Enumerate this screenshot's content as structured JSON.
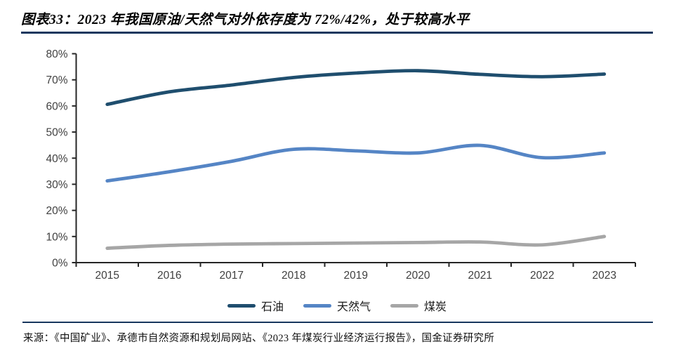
{
  "header": {
    "title": "图表33：2023 年我国原油/天然气对外依存度为 72%/42%，处于较高水平"
  },
  "chart_data": {
    "type": "line",
    "x": [
      "2015",
      "2016",
      "2017",
      "2018",
      "2019",
      "2020",
      "2021",
      "2022",
      "2023"
    ],
    "series": [
      {
        "id": "oil",
        "name": "石油",
        "color": "#1F4E6E",
        "values": [
          60.6,
          65.4,
          68.0,
          70.9,
          72.6,
          73.5,
          72.1,
          71.2,
          72.2
        ]
      },
      {
        "id": "gas",
        "name": "天然气",
        "color": "#5585C5",
        "values": [
          31.3,
          34.8,
          38.8,
          43.4,
          42.8,
          42.0,
          44.9,
          40.2,
          42.0
        ]
      },
      {
        "id": "coal",
        "name": "煤炭",
        "color": "#A6A6A6",
        "values": [
          5.5,
          6.6,
          7.1,
          7.3,
          7.5,
          7.7,
          7.9,
          6.8,
          10.0
        ]
      }
    ],
    "title": "2023 年我国原油/天然气对外依存度为 72%/42%，处于较高水平",
    "xlabel": "",
    "ylabel": "",
    "ylim": [
      0,
      80
    ],
    "ytick_step": 10,
    "ytick_suffix": "%",
    "grid": false,
    "smooth": true,
    "legend_position": "bottom"
  },
  "footer": {
    "source": "来源：《中国矿业》、承德市自然资源和规划局网站、《2023 年煤炭行业经济运行报告》，国金证券研究所"
  },
  "colors": {
    "rule": "#17375E",
    "axis": "#262626",
    "tick_label": "#404040"
  }
}
